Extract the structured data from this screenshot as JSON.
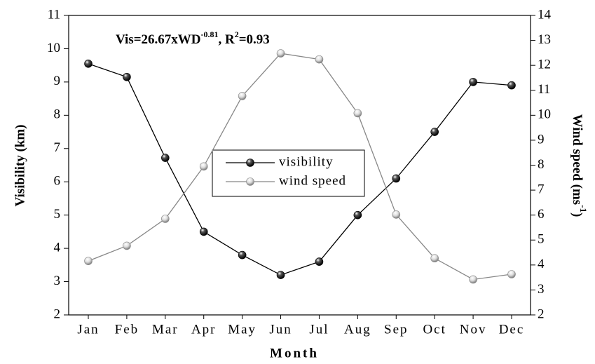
{
  "chart_data": {
    "type": "line",
    "annotation": [
      "Vis=26.67xWD",
      "-0.81",
      ", R",
      "2",
      "=0.93"
    ],
    "x_label": "Month",
    "y_label": "Visibility (km)",
    "y2_label": [
      "Wind speed (ms",
      "-1",
      ")"
    ],
    "categories": [
      "Jan",
      "Feb",
      "Mar",
      "Apr",
      "May",
      "Jun",
      "Jul",
      "Aug",
      "Sep",
      "Oct",
      "Nov",
      "Dec"
    ],
    "ylim": [
      2,
      11
    ],
    "yticks": [
      2,
      3,
      4,
      5,
      6,
      7,
      8,
      9,
      10,
      11
    ],
    "y2lim": [
      2,
      14
    ],
    "y2ticks": [
      2,
      3,
      4,
      5,
      6,
      7,
      8,
      9,
      10,
      11,
      12,
      13,
      14
    ],
    "series": [
      {
        "name": "visibility",
        "color": "#000000",
        "values": [
          9.55,
          9.15,
          6.72,
          4.5,
          3.8,
          3.2,
          3.6,
          5.0,
          6.1,
          7.5,
          9.0,
          8.9
        ]
      },
      {
        "name": "wind speed",
        "color": "#888888",
        "axis": "y2",
        "values": [
          4.16,
          4.77,
          5.85,
          7.95,
          10.77,
          12.48,
          12.24,
          10.08,
          6.02,
          4.27,
          3.42,
          3.63
        ]
      }
    ]
  }
}
